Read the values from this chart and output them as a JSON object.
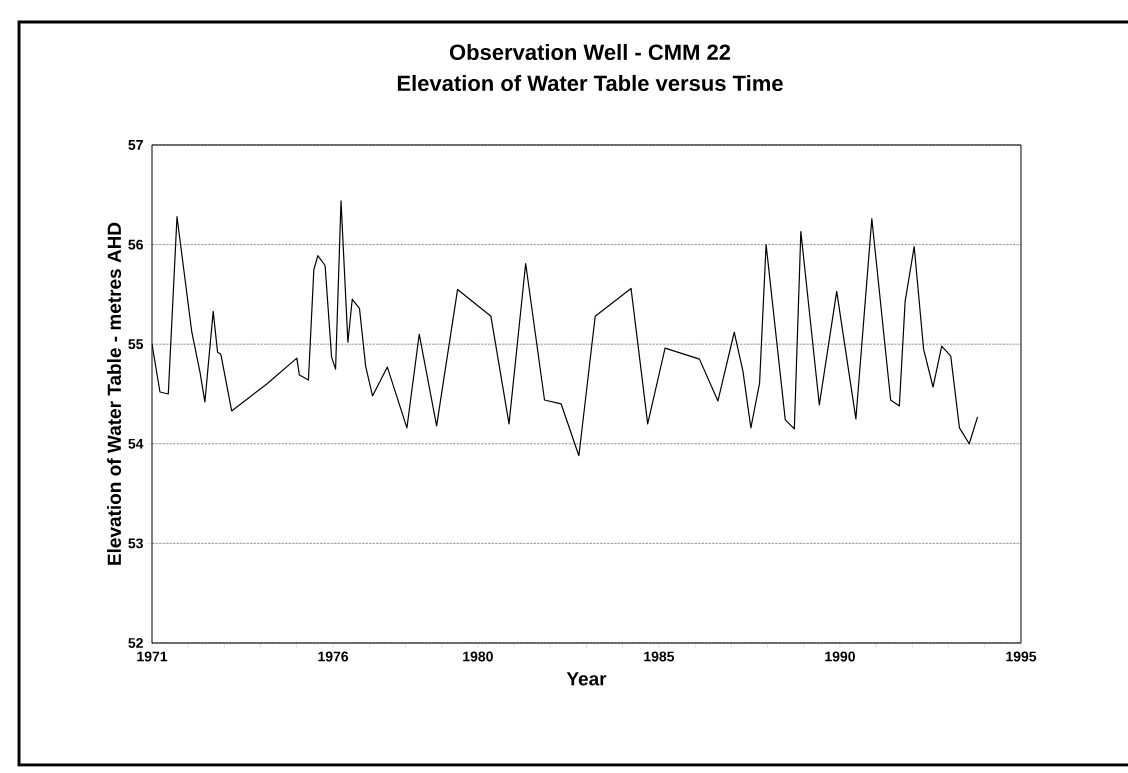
{
  "chart_data": {
    "type": "line",
    "title": "Observation Well - CMM 22",
    "subtitle": "Elevation of Water Table versus Time",
    "xlabel": "Year",
    "ylabel": "Elevation of Water Table - metres AHD",
    "xlim": [
      1971,
      1995
    ],
    "xticks": [
      1971,
      {
        "value": 1972,
        "label": null
      },
      {
        "value": 1973,
        "label": null
      },
      {
        "value": 1974,
        "label": null
      },
      {
        "value": 1975,
        "label": null
      },
      1976,
      {
        "value": 1977,
        "label": null
      },
      {
        "value": 1978,
        "label": null
      },
      {
        "value": 1979,
        "label": null
      },
      1980,
      {
        "value": 1981,
        "label": null
      },
      {
        "value": 1982,
        "label": null
      },
      {
        "value": 1983,
        "label": null
      },
      {
        "value": 1984,
        "label": null
      },
      1985,
      {
        "value": 1986,
        "label": null
      },
      {
        "value": 1987,
        "label": null
      },
      {
        "value": 1988,
        "label": null
      },
      {
        "value": 1989,
        "label": null
      },
      1990,
      {
        "value": 1991,
        "label": null
      },
      {
        "value": 1992,
        "label": null
      },
      {
        "value": 1993,
        "label": null
      },
      {
        "value": 1994,
        "label": null
      },
      1995
    ],
    "ylim": [
      52,
      57
    ],
    "yticks": [
      52,
      53,
      54,
      55,
      56,
      57
    ],
    "grid": "y",
    "series": [
      {
        "color": "#000000",
        "x": [
          1971.0,
          1971.22,
          1971.45,
          1971.69,
          1972.1,
          1972.33,
          1972.46,
          1972.69,
          1972.81,
          1972.9,
          1973.2,
          1974.17,
          1975.0,
          1975.07,
          1975.32,
          1975.47,
          1975.58,
          1975.78,
          1975.96,
          1976.07,
          1976.22,
          1976.41,
          1976.53,
          1976.73,
          1976.9,
          1977.09,
          1977.5,
          1978.04,
          1978.38,
          1978.86,
          1979.44,
          1980.36,
          1980.86,
          1981.32,
          1981.84,
          1982.3,
          1982.79,
          1983.24,
          1984.23,
          1984.69,
          1985.17,
          1986.12,
          1986.63,
          1987.08,
          1987.32,
          1987.54,
          1987.78,
          1987.96,
          1988.49,
          1988.74,
          1988.92,
          1989.43,
          1989.91,
          1990.44,
          1990.88,
          1991.4,
          1991.64,
          1991.8,
          1992.05,
          1992.31,
          1992.57,
          1992.81,
          1993.06,
          1993.3,
          1993.57,
          1993.8
        ],
        "values": [
          55.0,
          54.52,
          54.5,
          56.28,
          55.12,
          54.71,
          54.42,
          55.33,
          54.92,
          54.9,
          54.33,
          54.6,
          54.86,
          54.69,
          54.64,
          55.75,
          55.89,
          55.79,
          54.87,
          54.75,
          56.44,
          55.02,
          55.45,
          55.36,
          54.78,
          54.48,
          54.77,
          54.16,
          55.1,
          54.18,
          55.55,
          55.28,
          54.2,
          55.81,
          54.44,
          54.4,
          53.88,
          55.28,
          55.56,
          54.2,
          54.96,
          54.85,
          54.43,
          55.12,
          54.73,
          54.16,
          54.61,
          56.0,
          54.24,
          54.15,
          56.13,
          54.39,
          55.53,
          54.25,
          56.26,
          54.44,
          54.38,
          55.43,
          55.98,
          54.95,
          54.57,
          54.98,
          54.88,
          54.16,
          54.0,
          54.27
        ]
      }
    ]
  }
}
